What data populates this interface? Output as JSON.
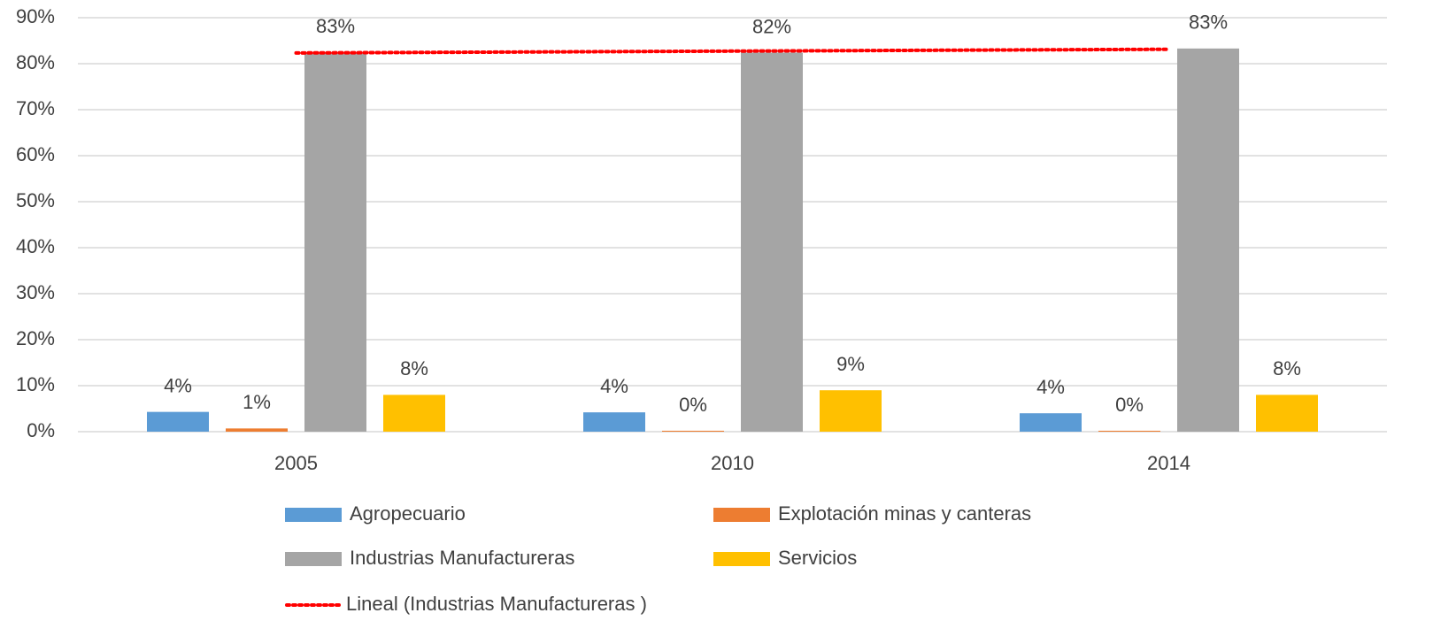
{
  "chart_data": {
    "type": "bar",
    "categories": [
      "2005",
      "2010",
      "2014"
    ],
    "series": [
      {
        "name": "Agropecuario",
        "color": "#5b9bd5",
        "values": [
          4.3,
          4.2,
          4.0
        ],
        "value_labels": [
          "4%",
          "4%",
          "4%"
        ]
      },
      {
        "name": "Explotación minas y canteras",
        "color": "#ed7d31",
        "values": [
          0.7,
          0.2,
          0.2
        ],
        "value_labels": [
          "1%",
          "0%",
          "0%"
        ]
      },
      {
        "name": "Industrias Manufactureras",
        "color": "#a5a5a5",
        "values": [
          82.5,
          82.4,
          83.3
        ],
        "value_labels": [
          "83%",
          "82%",
          "83%"
        ]
      },
      {
        "name": "Servicios",
        "color": "#ffc000",
        "values": [
          8.0,
          9.0,
          8.0
        ],
        "value_labels": [
          "8%",
          "9%",
          "8%"
        ]
      }
    ],
    "trendline": {
      "name": "Lineal (Industrias Manufactureras )",
      "series": 2,
      "color": "#ff0000"
    },
    "ylim": [
      0,
      90
    ],
    "yticks": [
      {
        "value": 0,
        "label": "0%"
      },
      {
        "value": 10,
        "label": "10%"
      },
      {
        "value": 20,
        "label": "20%"
      },
      {
        "value": 30,
        "label": "30%"
      },
      {
        "value": 40,
        "label": "40%"
      },
      {
        "value": 50,
        "label": "50%"
      },
      {
        "value": 60,
        "label": "60%"
      },
      {
        "value": 70,
        "label": "70%"
      },
      {
        "value": 80,
        "label": "80%"
      },
      {
        "value": 90,
        "label": "90%"
      }
    ],
    "grid": true
  }
}
